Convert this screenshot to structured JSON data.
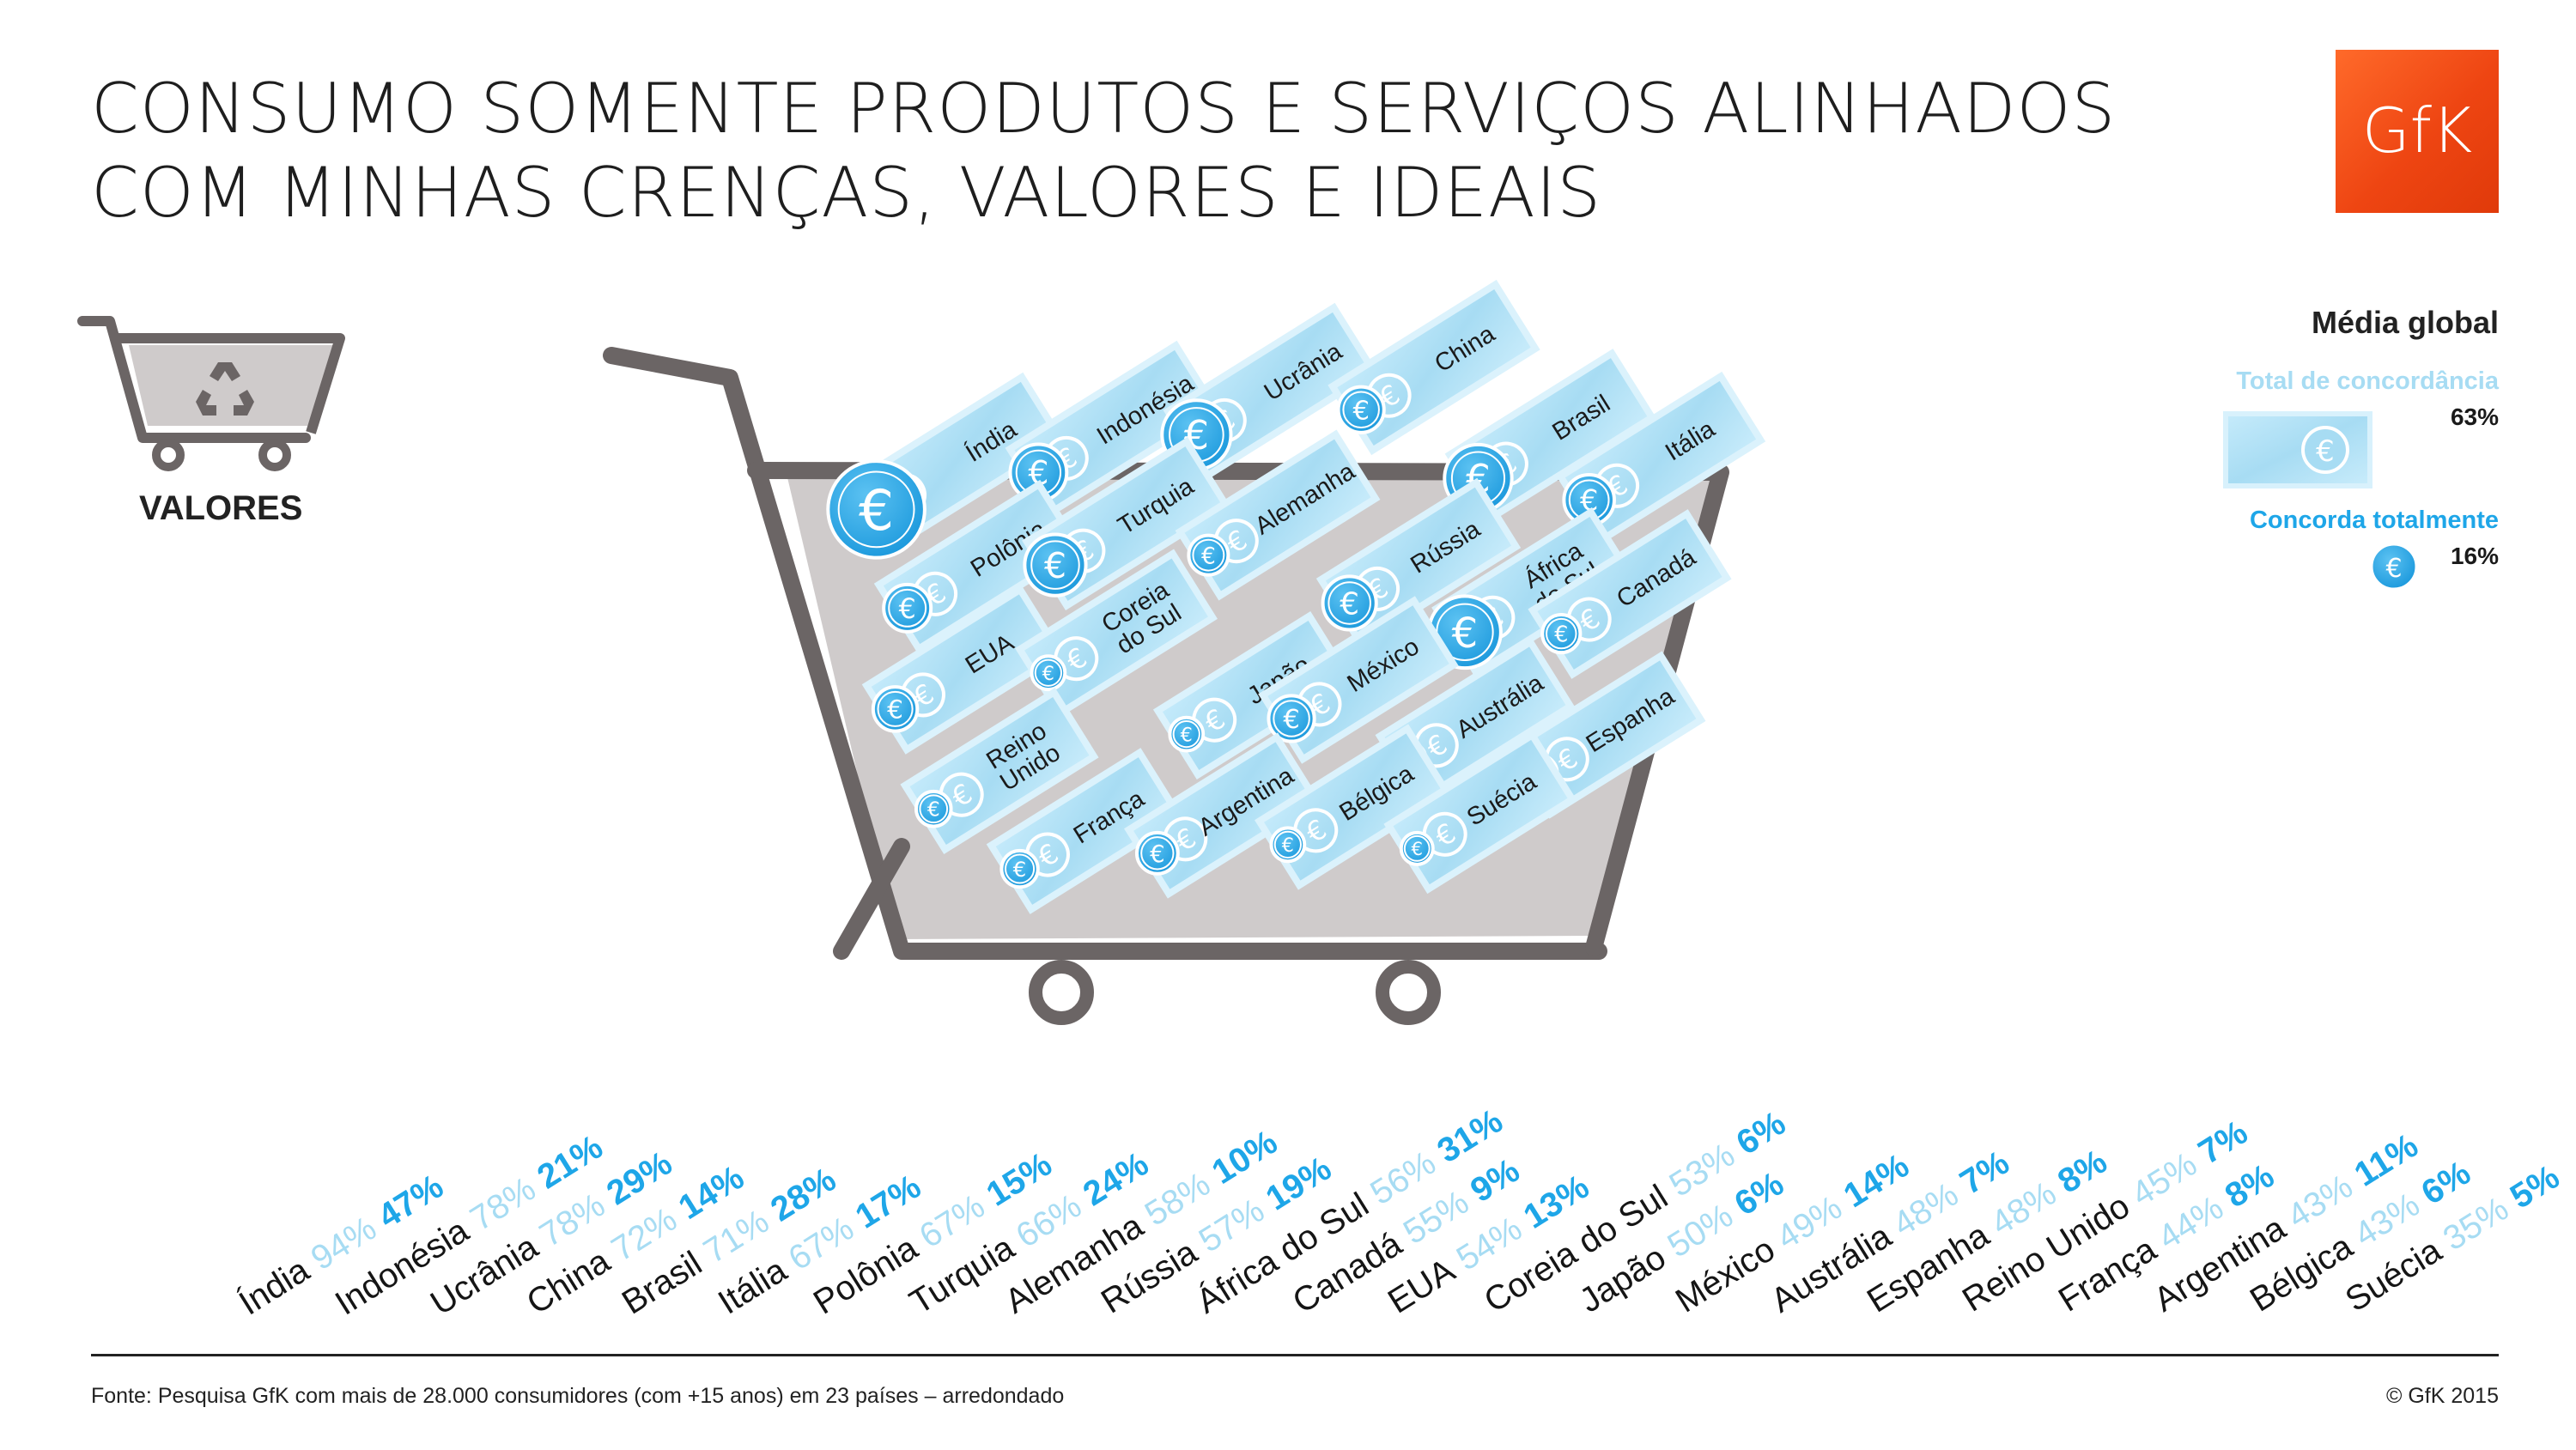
{
  "header": {
    "title_line1": "CONSUMO SOMENTE PRODUTOS E SERVIÇOS ALINHADOS",
    "title_line2": "COM MINHAS CRENÇAS, VALORES E IDEAIS",
    "logo_text": "GfK"
  },
  "icon_label": "VALORES",
  "legend": {
    "title": "Média global",
    "total_label": "Total de concordância",
    "total_value": "63%",
    "full_label": "Concorda totalmente",
    "full_value": "16%"
  },
  "footer": {
    "source": "Fonte: Pesquisa GfK com mais de 28.000 consumidores (com +15 anos) em 23 países – arredondado",
    "copyright": "© GfK 2015"
  },
  "colors": {
    "brand": "#ee4512",
    "total": "#a7dcf3",
    "full": "#1ea6e8",
    "cart": "#6b6565",
    "basket": "#cfcbcb"
  },
  "chart_data": {
    "type": "bar",
    "series": [
      {
        "name": "Total de concordância",
        "unit": "%"
      },
      {
        "name": "Concorda totalmente",
        "unit": "%"
      }
    ],
    "categories": [
      "Índia",
      "Indonésia",
      "Ucrânia",
      "China",
      "Brasil",
      "Itália",
      "Polônia",
      "Turquia",
      "Alemanha",
      "Rússia",
      "África do Sul",
      "Canadá",
      "EUA",
      "Coreia do Sul",
      "Japão",
      "México",
      "Austrália",
      "Espanha",
      "Reino Unido",
      "França",
      "Argentina",
      "Bélgica",
      "Suécia"
    ],
    "total": [
      94,
      78,
      78,
      72,
      71,
      67,
      67,
      66,
      58,
      57,
      56,
      55,
      54,
      53,
      50,
      49,
      48,
      48,
      45,
      44,
      43,
      43,
      35
    ],
    "full": [
      47,
      21,
      29,
      14,
      28,
      17,
      15,
      24,
      10,
      19,
      31,
      9,
      13,
      6,
      6,
      14,
      7,
      8,
      7,
      8,
      11,
      6,
      5
    ],
    "global_average": {
      "total": 63,
      "full": 16
    },
    "cart_labels": [
      {
        "country": "Índia",
        "text": "Índia"
      },
      {
        "country": "Indonésia",
        "text": "Indonésia"
      },
      {
        "country": "Ucrânia",
        "text": "Ucrânia"
      },
      {
        "country": "China",
        "text": "China"
      },
      {
        "country": "Brasil",
        "text": "Brasil"
      },
      {
        "country": "Itália",
        "text": "Itália"
      },
      {
        "country": "Polônia",
        "text": "Polônia"
      },
      {
        "country": "Turquia",
        "text": "Turquia"
      },
      {
        "country": "Alemanha",
        "text": "Alemanha"
      },
      {
        "country": "Rússia",
        "text": "Rússia"
      },
      {
        "country": "África do Sul",
        "text": "África do Sul",
        "lines": [
          "África",
          "do Sul"
        ]
      },
      {
        "country": "Canadá",
        "text": "Canadá"
      },
      {
        "country": "EUA",
        "text": "EUA"
      },
      {
        "country": "Coreia do Sul",
        "text": "Coreia do Sul",
        "lines": [
          "Coreia",
          "do Sul"
        ]
      },
      {
        "country": "Japão",
        "text": "Japão"
      },
      {
        "country": "México",
        "text": "México"
      },
      {
        "country": "Austrália",
        "text": "Austrália"
      },
      {
        "country": "Espanha",
        "text": "Espanha"
      },
      {
        "country": "Reino Unido",
        "text": "Reino Unido",
        "lines": [
          "Reino",
          "Unido"
        ]
      },
      {
        "country": "França",
        "text": "França"
      },
      {
        "country": "Argentina",
        "text": "Argentina"
      },
      {
        "country": "Bélgica",
        "text": "Bélgica"
      },
      {
        "country": "Suécia",
        "text": "Suécia"
      }
    ]
  }
}
